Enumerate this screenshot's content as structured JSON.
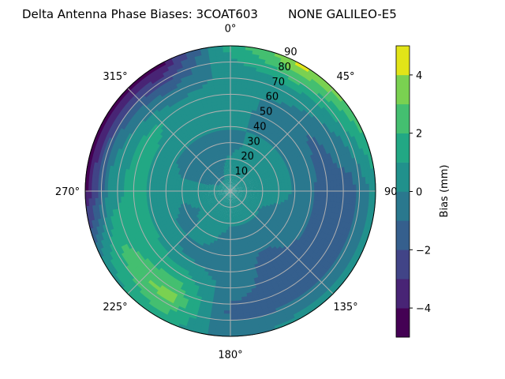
{
  "chart_data": {
    "type": "heatmap",
    "subtype": "polar-contourf",
    "title": "Delta Antenna Phase Biases: 3COAT603        NONE GALILEO-E5",
    "theta_direction": "clockwise",
    "theta_zero": "top",
    "theta_ticks": [
      "0°",
      "45°",
      "90°",
      "135°",
      "180°",
      "225°",
      "270°",
      "315°"
    ],
    "r_ticks": [
      "10",
      "20",
      "30",
      "40",
      "50",
      "60",
      "70",
      "80",
      "90"
    ],
    "rlim": [
      0,
      90
    ],
    "grid": true,
    "colorbar": {
      "label": "Bias (mm)",
      "levels": [
        -5,
        -4,
        -3,
        -2,
        -1,
        0,
        1,
        2,
        3,
        4,
        5
      ],
      "ticks": [
        "−4",
        "−2",
        "0",
        "2",
        "4"
      ],
      "tick_values": [
        -4,
        -2,
        0,
        2,
        4
      ],
      "colormap": "viridis",
      "colors": [
        "#440154",
        "#482475",
        "#414487",
        "#355f8d",
        "#2a788e",
        "#21918c",
        "#22a884",
        "#44bf70",
        "#7ad151",
        "#e2e418"
      ]
    },
    "azimuth_deg": [
      0,
      30,
      60,
      90,
      120,
      150,
      180,
      210,
      240,
      270,
      300,
      330
    ],
    "radius": [
      0,
      15,
      30,
      45,
      60,
      75,
      90
    ],
    "values": [
      [
        0.5,
        0.5,
        -0.5,
        0.5,
        0.5,
        0.5,
        1.5
      ],
      [
        0.5,
        0.5,
        0.5,
        -0.5,
        -0.3,
        1.2,
        4.5
      ],
      [
        0.5,
        0.5,
        0.5,
        -0.5,
        -1.2,
        0.2,
        2.5
      ],
      [
        0.5,
        0.5,
        0.5,
        -0.5,
        -1.5,
        -1.5,
        0.5
      ],
      [
        0.5,
        0.3,
        -0.5,
        -0.5,
        -1.5,
        -1.5,
        0.5
      ],
      [
        0.5,
        0.5,
        -0.5,
        -1.2,
        -1.5,
        -1.5,
        0.5
      ],
      [
        0.5,
        0.5,
        -0.5,
        -0.5,
        -0.5,
        -1.3,
        -0.5
      ],
      [
        0.5,
        0.5,
        0.5,
        -0.5,
        1.5,
        3.5,
        1.5
      ],
      [
        0.5,
        0.5,
        -0.5,
        0.5,
        1.5,
        2.2,
        0.5
      ],
      [
        0.5,
        0.5,
        0.5,
        0.5,
        1.5,
        0.3,
        -4.5
      ],
      [
        0.5,
        -0.5,
        -0.5,
        0.5,
        1.5,
        -0.5,
        -4.5
      ],
      [
        0.5,
        -0.5,
        -0.5,
        0.5,
        0.5,
        -1.5,
        -4.5
      ]
    ]
  }
}
